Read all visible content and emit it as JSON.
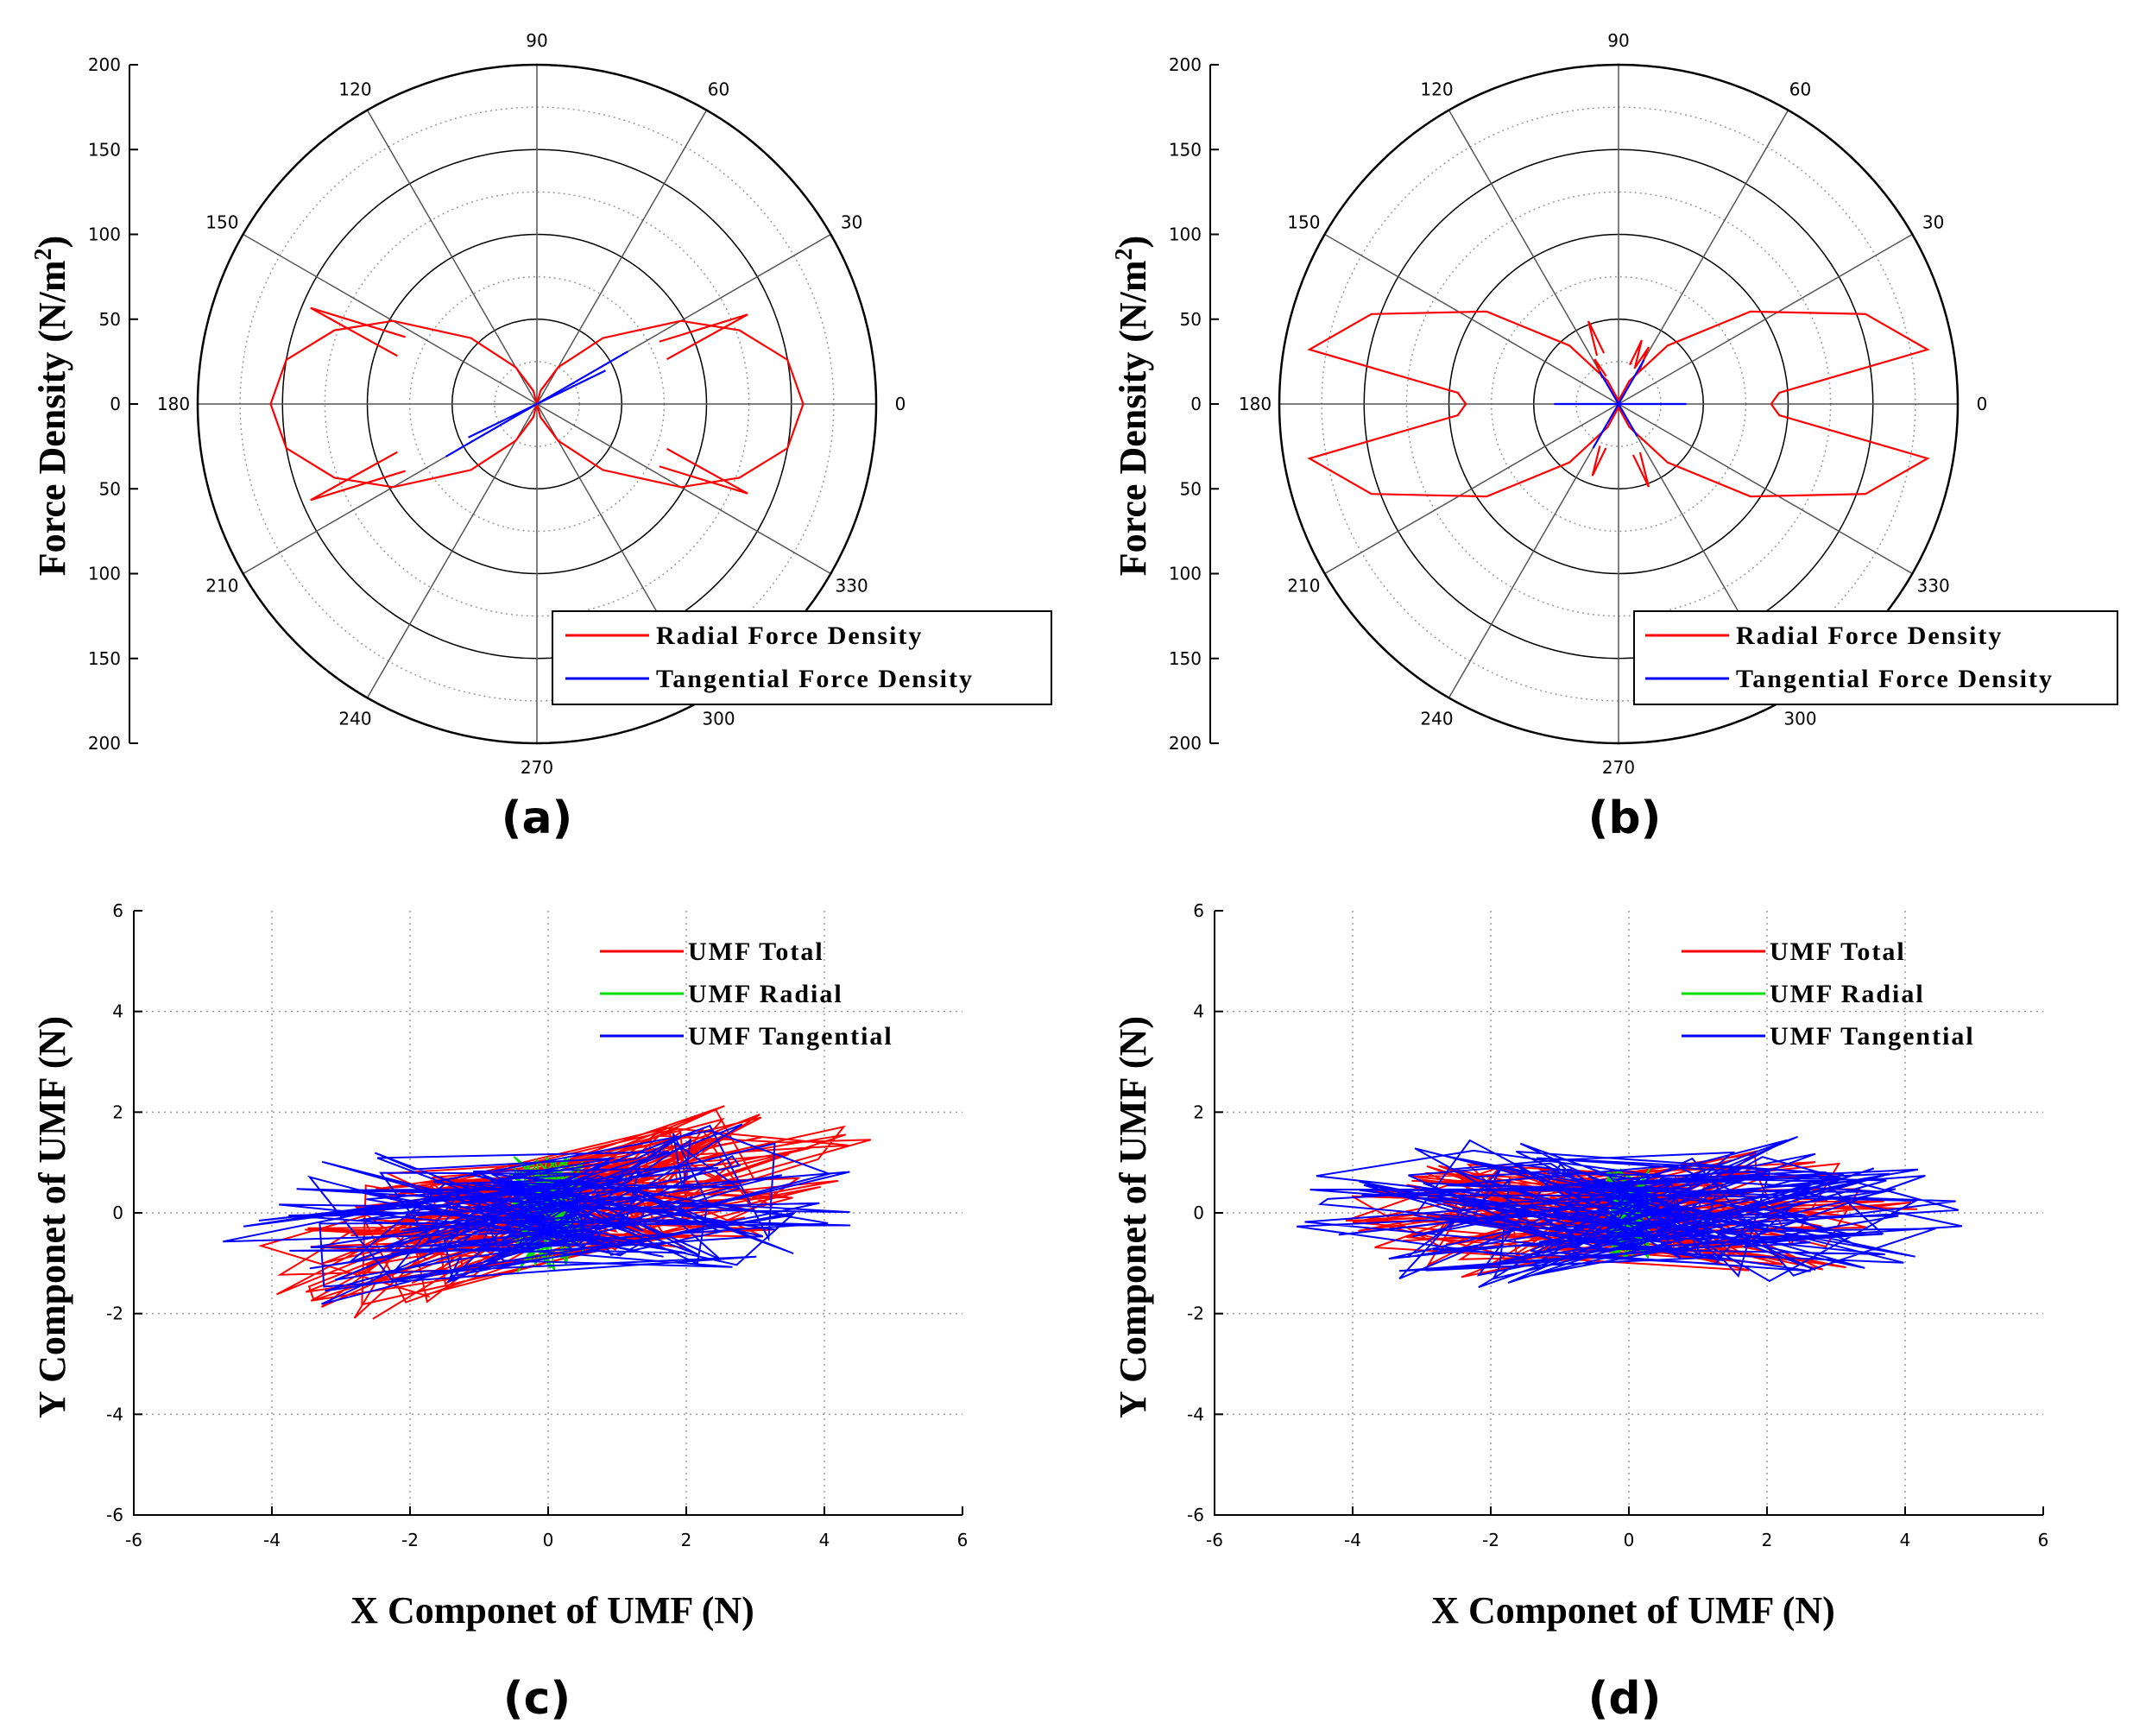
{
  "colors": {
    "radial": "#ff0000",
    "tangential": "#0000ff",
    "umf_radial": "#00dd00",
    "grid": "#999999",
    "axis": "#000000"
  },
  "panels": [
    {
      "id": "a",
      "label": "(a)"
    },
    {
      "id": "b",
      "label": "(b)"
    },
    {
      "id": "c",
      "label": "(c)"
    },
    {
      "id": "d",
      "label": "(d)"
    }
  ],
  "chart_data": [
    {
      "panel": "(a)",
      "type": "polar",
      "ylabel_main": "Force Density (N/m",
      "ylabel_sup": "2",
      "ylabel_close": ")",
      "r_max": 200,
      "r_ticks": [
        "200",
        "150",
        "100",
        "50",
        "0",
        "50",
        "100",
        "150",
        "200"
      ],
      "angle_ticks": [
        "0",
        "30",
        "60",
        "90",
        "120",
        "150",
        "180",
        "210",
        "240",
        "270",
        "300",
        "330"
      ],
      "legend": [
        "Radial Force Density",
        "Tangential Force Density"
      ],
      "series": [
        {
          "name": "Radial Force Density",
          "color": "radial",
          "points_deg_r": [
            [
              0,
              157
            ],
            [
              10,
              150
            ],
            [
              20,
              127
            ],
            [
              30,
              98
            ],
            [
              45,
              55
            ],
            [
              60,
              25
            ],
            [
              75,
              8
            ],
            [
              90,
              0
            ],
            [
              105,
              8
            ],
            [
              120,
              25
            ],
            [
              135,
              55
            ],
            [
              150,
              98
            ],
            [
              160,
              127
            ],
            [
              170,
              150
            ],
            [
              180,
              157
            ],
            [
              190,
              150
            ],
            [
              200,
              127
            ],
            [
              210,
              98
            ],
            [
              225,
              55
            ],
            [
              240,
              25
            ],
            [
              255,
              8
            ],
            [
              270,
              0
            ],
            [
              285,
              8
            ],
            [
              300,
              25
            ],
            [
              315,
              55
            ],
            [
              330,
              98
            ],
            [
              340,
              127
            ],
            [
              350,
              150
            ],
            [
              360,
              157
            ]
          ],
          "spikes_deg_r": [
            [
              23,
              135
            ],
            [
              157,
              145
            ],
            [
              203,
              145
            ],
            [
              337,
              135
            ]
          ]
        },
        {
          "name": "Tangential Force Density",
          "color": "tangential",
          "segments_deg_r": [
            [
              [
                30,
                62
              ],
              [
                210,
                62
              ]
            ],
            [
              [
                26,
                45
              ],
              [
                206,
                45
              ]
            ]
          ]
        }
      ]
    },
    {
      "panel": "(b)",
      "type": "polar",
      "ylabel_main": "Force Density (N/m",
      "ylabel_sup": "2",
      "ylabel_close": ")",
      "r_max": 200,
      "r_ticks": [
        "200",
        "150",
        "100",
        "50",
        "0",
        "50",
        "100",
        "150",
        "200"
      ],
      "angle_ticks": [
        "0",
        "30",
        "60",
        "90",
        "120",
        "150",
        "180",
        "210",
        "240",
        "270",
        "300",
        "330"
      ],
      "legend": [
        "Radial Force Density",
        "Tangential Force Density"
      ],
      "series": [
        {
          "name": "Radial Force Density",
          "color": "radial",
          "points_deg_r": [
            [
              0,
              90
            ],
            [
              4,
              95
            ],
            [
              10,
              185
            ],
            [
              20,
              155
            ],
            [
              35,
              95
            ],
            [
              50,
              45
            ],
            [
              65,
              15
            ],
            [
              80,
              3
            ],
            [
              90,
              0
            ],
            [
              100,
              3
            ],
            [
              115,
              15
            ],
            [
              130,
              45
            ],
            [
              145,
              95
            ],
            [
              160,
              155
            ],
            [
              170,
              185
            ],
            [
              176,
              95
            ],
            [
              180,
              90
            ],
            [
              184,
              95
            ],
            [
              190,
              185
            ],
            [
              200,
              155
            ],
            [
              215,
              95
            ],
            [
              230,
              45
            ],
            [
              245,
              15
            ],
            [
              260,
              3
            ],
            [
              270,
              0
            ],
            [
              280,
              3
            ],
            [
              295,
              15
            ],
            [
              310,
              45
            ],
            [
              325,
              95
            ],
            [
              340,
              155
            ],
            [
              350,
              185
            ],
            [
              356,
              95
            ],
            [
              360,
              90
            ]
          ],
          "spikes_deg_r": [
            [
              70,
              40
            ],
            [
              110,
              52
            ],
            [
              250,
              45
            ],
            [
              290,
              52
            ],
            [
              62,
              38
            ],
            [
              118,
              30
            ]
          ]
        },
        {
          "name": "Tangential Force Density",
          "color": "tangential",
          "segments_deg_r": [
            [
              [
                0,
                40
              ],
              [
                180,
                38
              ]
            ],
            [
              [
                60,
                30
              ],
              [
                240,
                30
              ]
            ],
            [
              [
                120,
                22
              ],
              [
                300,
                22
              ]
            ]
          ]
        }
      ]
    },
    {
      "panel": "(c)",
      "type": "line",
      "xlabel": "X Componet of UMF (N)",
      "ylabel": "Y Componet of UMF (N)",
      "xlim": [
        -6,
        6
      ],
      "ylim": [
        -6,
        6
      ],
      "xticks": [
        "-6",
        "-4",
        "-2",
        "0",
        "2",
        "4",
        "6"
      ],
      "yticks": [
        "-6",
        "-4",
        "-2",
        "0",
        "2",
        "4",
        "6"
      ],
      "legend": [
        "UMF Total",
        "UMF Radial",
        "UMF Tangential"
      ],
      "series": [
        {
          "name": "UMF Total",
          "color": "radial",
          "seed": 11,
          "rx": [
            0.7,
            4.7
          ],
          "ry": 1.6,
          "tilt": 0.28,
          "n": 220
        },
        {
          "name": "UMF Radial",
          "color": "umf_radial",
          "seed": 23,
          "rx": [
            0.0,
            0.55
          ],
          "ry": 1.2,
          "tilt": 0.0,
          "n": 90
        },
        {
          "name": "UMF Tangential",
          "color": "tangential",
          "seed": 37,
          "rx": [
            0.4,
            4.9
          ],
          "ry": 1.7,
          "tilt": 0.12,
          "n": 200
        }
      ]
    },
    {
      "panel": "(d)",
      "type": "line",
      "xlabel": "X Componet of UMF (N)",
      "ylabel": "Y Componet of UMF (N)",
      "xlim": [
        -6,
        6
      ],
      "ylim": [
        -6,
        6
      ],
      "xticks": [
        "-6",
        "-4",
        "-2",
        "0",
        "2",
        "4",
        "6"
      ],
      "yticks": [
        "-6",
        "-4",
        "-2",
        "0",
        "2",
        "4",
        "6"
      ],
      "legend": [
        "UMF Total",
        "UMF Radial",
        "UMF Tangential"
      ],
      "series": [
        {
          "name": "UMF Total",
          "color": "radial",
          "seed": 53,
          "rx": [
            0.3,
            4.2
          ],
          "ry": 1.4,
          "tilt": 0.0,
          "n": 200
        },
        {
          "name": "UMF Radial",
          "color": "umf_radial",
          "seed": 71,
          "rx": [
            0.0,
            0.35
          ],
          "ry": 0.9,
          "tilt": 0.0,
          "n": 80
        },
        {
          "name": "UMF Tangential",
          "color": "tangential",
          "seed": 89,
          "rx": [
            0.2,
            4.9
          ],
          "ry": 1.8,
          "tilt": 0.0,
          "n": 200
        }
      ]
    }
  ]
}
